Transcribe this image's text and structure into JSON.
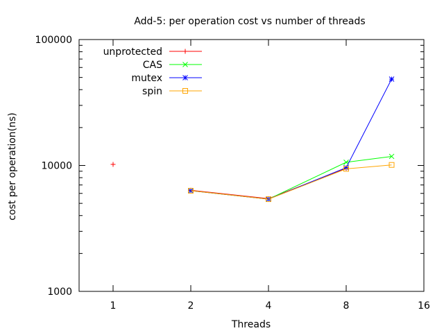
{
  "chart_data": {
    "type": "line",
    "title": "Add-5: per operation cost vs number of threads",
    "xlabel": "Threads",
    "ylabel": "cost per operation(ns)",
    "x_scale": "log2",
    "y_scale": "log10",
    "xlim": [
      0.7,
      16
    ],
    "ylim": [
      1000,
      100000
    ],
    "x_ticks": [
      1,
      2,
      4,
      8,
      16
    ],
    "x_tick_labels": [
      "1",
      "2",
      "4",
      "8",
      "16"
    ],
    "y_ticks": [
      1000,
      10000,
      100000
    ],
    "y_tick_labels": [
      "1000",
      "10000",
      "100000"
    ],
    "grid": false,
    "legend_position": "top-left",
    "series": [
      {
        "name": "unprotected",
        "color": "#ff0000",
        "marker": "plus",
        "points": [
          [
            1,
            10200
          ],
          [
            2,
            6350
          ],
          [
            4,
            5450
          ],
          [
            8,
            9500
          ]
        ],
        "line_from_index": 1
      },
      {
        "name": "CAS",
        "color": "#00ff00",
        "marker": "x",
        "points": [
          [
            2,
            6300
          ],
          [
            4,
            5400
          ],
          [
            8,
            10600
          ],
          [
            12,
            11800
          ]
        ]
      },
      {
        "name": "mutex",
        "color": "#0000ff",
        "marker": "star",
        "points": [
          [
            2,
            6300
          ],
          [
            4,
            5400
          ],
          [
            8,
            9600
          ],
          [
            12,
            48500
          ]
        ]
      },
      {
        "name": "spin",
        "color": "#ffa500",
        "marker": "square",
        "points": [
          [
            2,
            6300
          ],
          [
            4,
            5400
          ],
          [
            8,
            9400
          ],
          [
            12,
            10100
          ]
        ]
      }
    ]
  }
}
